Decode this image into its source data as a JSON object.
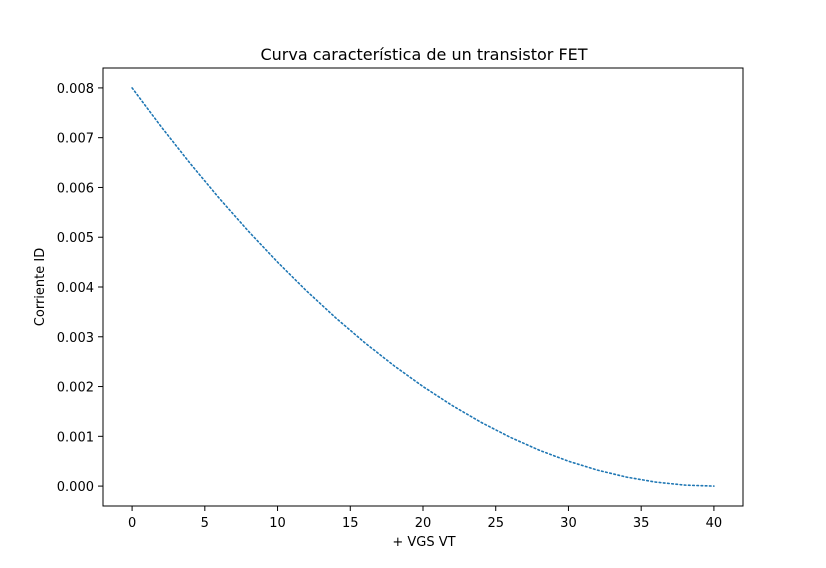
{
  "chart_data": {
    "type": "line",
    "title": "Curva característica de un transistor FET",
    "xlabel": "+ VGS VT",
    "ylabel": "Corriente ID",
    "xlim": [
      -2,
      42
    ],
    "ylim": [
      -0.0004,
      0.0084
    ],
    "x_ticks": [
      0,
      5,
      10,
      15,
      20,
      25,
      30,
      35,
      40
    ],
    "y_ticks": [
      0.0,
      0.001,
      0.002,
      0.003,
      0.004,
      0.005,
      0.006,
      0.007,
      0.008
    ],
    "x_tick_labels": [
      "0",
      "5",
      "10",
      "15",
      "20",
      "25",
      "30",
      "35",
      "40"
    ],
    "y_tick_labels": [
      "0.000",
      "0.001",
      "0.002",
      "0.003",
      "0.004",
      "0.005",
      "0.006",
      "0.007",
      "0.008"
    ],
    "grid": false,
    "line_style": "dotted",
    "color": "#1f77b4",
    "series": [
      {
        "x": [
          0,
          2,
          4,
          6,
          8,
          10,
          12,
          14,
          16,
          18,
          20,
          22,
          24,
          26,
          28,
          30,
          32,
          34,
          36,
          38,
          40
        ],
        "values": [
          0.008,
          0.00722,
          0.00648,
          0.00578,
          0.00512,
          0.0045,
          0.00392,
          0.00338,
          0.00288,
          0.00242,
          0.002,
          0.00162,
          0.00128,
          0.00098,
          0.00072,
          0.0005,
          0.00032,
          0.00018,
          8e-05,
          2e-05,
          0.0
        ]
      }
    ]
  }
}
